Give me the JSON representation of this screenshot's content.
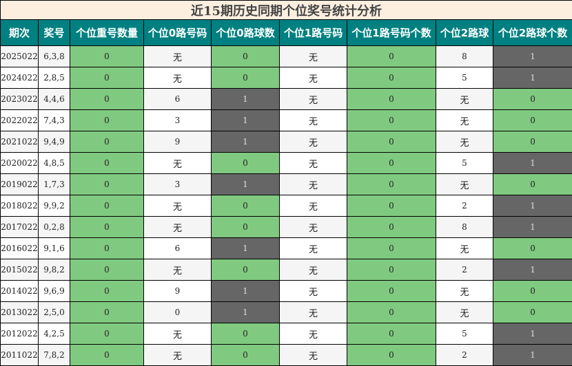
{
  "title": "近15期历史同期个位奖号统计分析",
  "headers": [
    "期次",
    "奖号",
    "个位重号数量",
    "个位0路号码",
    "个位0路球数",
    "个位1路号码",
    "个位1路号码个数",
    "个位2路球",
    "个位2路球个数"
  ],
  "colors": {
    "header": "#008080",
    "title_bg": "#fdefe0",
    "zero_cell": "#80c980",
    "one_cell": "#666666"
  },
  "rows": [
    [
      "2025022",
      "6,3,8",
      "0",
      "无",
      "0",
      "无",
      "0",
      "8",
      "1"
    ],
    [
      "2024022",
      "2,8,5",
      "0",
      "无",
      "0",
      "无",
      "0",
      "5",
      "1"
    ],
    [
      "2023022",
      "4,4,6",
      "0",
      "6",
      "1",
      "无",
      "0",
      "无",
      "0"
    ],
    [
      "2022022",
      "7,4,3",
      "0",
      "3",
      "1",
      "无",
      "0",
      "无",
      "0"
    ],
    [
      "2021022",
      "9,4,9",
      "0",
      "9",
      "1",
      "无",
      "0",
      "无",
      "0"
    ],
    [
      "2020022",
      "4,8,5",
      "0",
      "无",
      "0",
      "无",
      "0",
      "5",
      "1"
    ],
    [
      "2019022",
      "1,7,3",
      "0",
      "3",
      "1",
      "无",
      "0",
      "无",
      "0"
    ],
    [
      "2018022",
      "9,9,2",
      "0",
      "无",
      "0",
      "无",
      "0",
      "2",
      "1"
    ],
    [
      "2017022",
      "0,2,8",
      "0",
      "无",
      "0",
      "无",
      "0",
      "8",
      "1"
    ],
    [
      "2016022",
      "9,1,6",
      "0",
      "6",
      "1",
      "无",
      "0",
      "无",
      "0"
    ],
    [
      "2015022",
      "9,8,2",
      "0",
      "无",
      "0",
      "无",
      "0",
      "2",
      "1"
    ],
    [
      "2014022",
      "9,6,9",
      "0",
      "9",
      "1",
      "无",
      "0",
      "无",
      "0"
    ],
    [
      "2013022",
      "2,5,0",
      "0",
      "0",
      "1",
      "无",
      "0",
      "无",
      "0"
    ],
    [
      "2012022",
      "4,2,5",
      "0",
      "无",
      "0",
      "无",
      "0",
      "5",
      "1"
    ],
    [
      "2011022",
      "7,8,2",
      "0",
      "无",
      "0",
      "无",
      "0",
      "2",
      "1"
    ]
  ]
}
